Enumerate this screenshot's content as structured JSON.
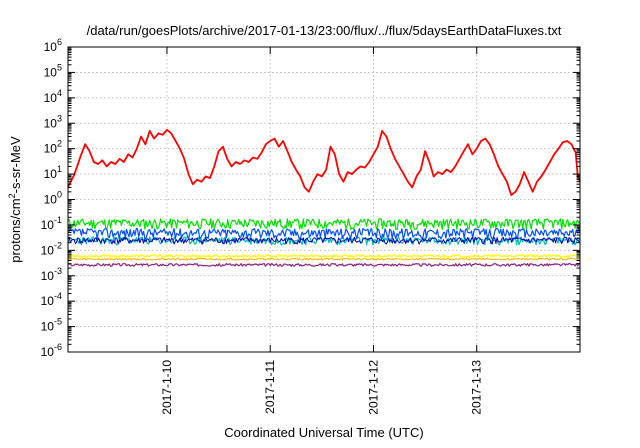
{
  "chart_data": {
    "type": "line",
    "title": "/data/run/goesPlots/archive/2017-01-13/23:00/flux/../flux/5daysEarthDataFluxes.txt",
    "xlabel": "Coordinated Universal Time (UTC)",
    "ylabel": "protons/cm2-s-sr-MeV",
    "ylabel_parts": {
      "pre": "protons/cm",
      "sup": "2",
      "post": "-s-sr-MeV"
    },
    "y_scale": "log",
    "ylim": [
      1e-06,
      1000000.0
    ],
    "xlim": [
      "2017-01-09T01:00",
      "2017-01-14T00:00"
    ],
    "grid": true,
    "yticks": [
      {
        "base": "10",
        "exp": "-6"
      },
      {
        "base": "10",
        "exp": "-5"
      },
      {
        "base": "10",
        "exp": "-4"
      },
      {
        "base": "10",
        "exp": "-3"
      },
      {
        "base": "10",
        "exp": "-2"
      },
      {
        "base": "10",
        "exp": "-1"
      },
      {
        "base": "10",
        "exp": "0"
      },
      {
        "base": "10",
        "exp": "1"
      },
      {
        "base": "10",
        "exp": "2"
      },
      {
        "base": "10",
        "exp": "3"
      },
      {
        "base": "10",
        "exp": "4"
      },
      {
        "base": "10",
        "exp": "5"
      },
      {
        "base": "10",
        "exp": "6"
      }
    ],
    "xticks": [
      {
        "label": "2017-1-10",
        "time": "2017-01-10T00:00"
      },
      {
        "label": "2017-1-11",
        "time": "2017-01-11T00:00"
      },
      {
        "label": "2017-1-12",
        "time": "2017-01-12T00:00"
      },
      {
        "label": "2017-1-13",
        "time": "2017-01-13T00:00"
      }
    ],
    "series": [
      {
        "color": "#ff0000",
        "width": 1.8,
        "points": [
          [
            "2017-01-09T01:00",
            3
          ],
          [
            "2017-01-09T02:30",
            10
          ],
          [
            "2017-01-09T04:00",
            55
          ],
          [
            "2017-01-09T05:00",
            150
          ],
          [
            "2017-01-09T06:00",
            80
          ],
          [
            "2017-01-09T07:00",
            30
          ],
          [
            "2017-01-09T08:00",
            25
          ],
          [
            "2017-01-09T09:00",
            35
          ],
          [
            "2017-01-09T10:00",
            20
          ],
          [
            "2017-01-09T11:00",
            30
          ],
          [
            "2017-01-09T12:00",
            25
          ],
          [
            "2017-01-09T13:00",
            40
          ],
          [
            "2017-01-09T14:00",
            30
          ],
          [
            "2017-01-09T15:00",
            60
          ],
          [
            "2017-01-09T16:00",
            45
          ],
          [
            "2017-01-09T17:00",
            100
          ],
          [
            "2017-01-09T18:00",
            300
          ],
          [
            "2017-01-09T19:00",
            150
          ],
          [
            "2017-01-09T20:00",
            500
          ],
          [
            "2017-01-09T21:00",
            250
          ],
          [
            "2017-01-09T22:00",
            400
          ],
          [
            "2017-01-09T23:00",
            350
          ],
          [
            "2017-01-10T00:00",
            550
          ],
          [
            "2017-01-10T01:00",
            400
          ],
          [
            "2017-01-10T02:00",
            200
          ],
          [
            "2017-01-10T03:00",
            100
          ],
          [
            "2017-01-10T04:00",
            40
          ],
          [
            "2017-01-10T05:00",
            10
          ],
          [
            "2017-01-10T06:00",
            4
          ],
          [
            "2017-01-10T07:00",
            6
          ],
          [
            "2017-01-10T08:00",
            5
          ],
          [
            "2017-01-10T09:00",
            8
          ],
          [
            "2017-01-10T10:00",
            7
          ],
          [
            "2017-01-10T11:00",
            20
          ],
          [
            "2017-01-10T12:00",
            80
          ],
          [
            "2017-01-10T13:00",
            120
          ],
          [
            "2017-01-10T14:00",
            40
          ],
          [
            "2017-01-10T15:00",
            20
          ],
          [
            "2017-01-10T16:00",
            30
          ],
          [
            "2017-01-10T17:00",
            25
          ],
          [
            "2017-01-10T18:00",
            35
          ],
          [
            "2017-01-10T19:00",
            30
          ],
          [
            "2017-01-10T20:00",
            45
          ],
          [
            "2017-01-10T21:00",
            40
          ],
          [
            "2017-01-10T22:00",
            70
          ],
          [
            "2017-01-10T23:00",
            150
          ],
          [
            "2017-01-11T00:00",
            200
          ],
          [
            "2017-01-11T01:00",
            250
          ],
          [
            "2017-01-11T02:00",
            120
          ],
          [
            "2017-01-11T03:00",
            200
          ],
          [
            "2017-01-11T04:00",
            80
          ],
          [
            "2017-01-11T05:00",
            30
          ],
          [
            "2017-01-11T06:00",
            15
          ],
          [
            "2017-01-11T07:00",
            8
          ],
          [
            "2017-01-11T08:00",
            3
          ],
          [
            "2017-01-11T09:00",
            2
          ],
          [
            "2017-01-11T10:00",
            5
          ],
          [
            "2017-01-11T11:00",
            10
          ],
          [
            "2017-01-11T12:00",
            8
          ],
          [
            "2017-01-11T13:00",
            15
          ],
          [
            "2017-01-11T14:00",
            120
          ],
          [
            "2017-01-11T15:00",
            60
          ],
          [
            "2017-01-11T16:00",
            10
          ],
          [
            "2017-01-11T17:00",
            5
          ],
          [
            "2017-01-11T18:00",
            12
          ],
          [
            "2017-01-11T19:00",
            10
          ],
          [
            "2017-01-11T20:00",
            15
          ],
          [
            "2017-01-11T21:00",
            20
          ],
          [
            "2017-01-11T22:00",
            18
          ],
          [
            "2017-01-11T23:00",
            30
          ],
          [
            "2017-01-12T00:00",
            60
          ],
          [
            "2017-01-12T01:00",
            120
          ],
          [
            "2017-01-12T02:00",
            500
          ],
          [
            "2017-01-12T03:00",
            300
          ],
          [
            "2017-01-12T04:00",
            100
          ],
          [
            "2017-01-12T05:00",
            40
          ],
          [
            "2017-01-12T06:00",
            20
          ],
          [
            "2017-01-12T07:00",
            10
          ],
          [
            "2017-01-12T08:00",
            5
          ],
          [
            "2017-01-12T09:00",
            3
          ],
          [
            "2017-01-12T10:00",
            8
          ],
          [
            "2017-01-12T11:00",
            15
          ],
          [
            "2017-01-12T12:00",
            80
          ],
          [
            "2017-01-12T13:00",
            30
          ],
          [
            "2017-01-12T14:00",
            8
          ],
          [
            "2017-01-12T15:00",
            12
          ],
          [
            "2017-01-12T16:00",
            10
          ],
          [
            "2017-01-12T17:00",
            15
          ],
          [
            "2017-01-12T18:00",
            12
          ],
          [
            "2017-01-12T19:00",
            20
          ],
          [
            "2017-01-12T20:00",
            40
          ],
          [
            "2017-01-12T21:00",
            80
          ],
          [
            "2017-01-12T22:00",
            150
          ],
          [
            "2017-01-12T23:00",
            60
          ],
          [
            "2017-01-13T00:00",
            100
          ],
          [
            "2017-01-13T01:00",
            200
          ],
          [
            "2017-01-13T02:00",
            250
          ],
          [
            "2017-01-13T03:00",
            150
          ],
          [
            "2017-01-13T04:00",
            60
          ],
          [
            "2017-01-13T05:00",
            20
          ],
          [
            "2017-01-13T06:00",
            10
          ],
          [
            "2017-01-13T07:00",
            5
          ],
          [
            "2017-01-13T08:00",
            1.5
          ],
          [
            "2017-01-13T09:00",
            2
          ],
          [
            "2017-01-13T10:00",
            4
          ],
          [
            "2017-01-13T11:00",
            12
          ],
          [
            "2017-01-13T12:00",
            5
          ],
          [
            "2017-01-13T13:00",
            2
          ],
          [
            "2017-01-13T14:00",
            5
          ],
          [
            "2017-01-13T15:00",
            8
          ],
          [
            "2017-01-13T16:00",
            15
          ],
          [
            "2017-01-13T17:00",
            30
          ],
          [
            "2017-01-13T18:00",
            60
          ],
          [
            "2017-01-13T19:00",
            100
          ],
          [
            "2017-01-13T20:00",
            180
          ],
          [
            "2017-01-13T21:00",
            200
          ],
          [
            "2017-01-13T22:00",
            150
          ],
          [
            "2017-01-13T23:00",
            70
          ],
          [
            "2017-01-13T23:30",
            8
          ],
          [
            "2017-01-14T00:00",
            5
          ]
        ]
      },
      {
        "color": "#00e000",
        "width": 1.2,
        "level": 0.12,
        "spread": 0.45,
        "seed": 11
      },
      {
        "color": "#00bcbc",
        "width": 1.2,
        "level": 0.025,
        "spread": 0.35,
        "seed": 23
      },
      {
        "color": "#0050ff",
        "width": 1.2,
        "level": 0.05,
        "spread": 0.45,
        "seed": 37
      },
      {
        "color": "#0000b0",
        "width": 1.0,
        "level": 0.025,
        "spread": 0.3,
        "seed": 41
      },
      {
        "color": "#ffff00",
        "width": 1.4,
        "level": 0.006,
        "spread": 0.1,
        "seed": 53
      },
      {
        "color": "#ffb000",
        "width": 1.0,
        "level": 0.0045,
        "spread": 0.08,
        "seed": 59
      },
      {
        "color": "#8b2080",
        "width": 1.2,
        "level": 0.0027,
        "spread": 0.12,
        "seed": 67
      }
    ]
  }
}
